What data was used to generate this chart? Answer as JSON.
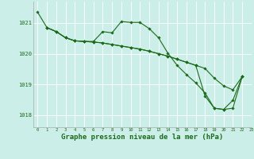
{
  "background_color": "#cceee8",
  "grid_color": "#ffffff",
  "line_color": "#1a6b1a",
  "marker_color": "#1a6b1a",
  "xlabel": "Graphe pression niveau de la mer (hPa)",
  "xlabel_fontsize": 6.5,
  "ylabel_ticks": [
    1018,
    1019,
    1020,
    1021
  ],
  "xlim": [
    -0.5,
    23
  ],
  "ylim": [
    1017.6,
    1021.7
  ],
  "line1_x": [
    0,
    1,
    2,
    3,
    4,
    5,
    6,
    7,
    8,
    9,
    10,
    11,
    12,
    13,
    14,
    15,
    16,
    17,
    18,
    19,
    20,
    21,
    22
  ],
  "line1_y": [
    1021.35,
    1020.85,
    1020.72,
    1020.52,
    1020.42,
    1020.4,
    1020.4,
    1020.72,
    1020.68,
    1021.05,
    1021.02,
    1021.02,
    1020.82,
    1020.52,
    1020.02,
    1019.62,
    1019.32,
    1019.05,
    1018.72,
    1018.22,
    1018.18,
    1018.22,
    1019.25
  ],
  "line2_x": [
    1,
    2,
    3,
    4,
    5,
    6,
    7,
    8,
    9,
    10,
    11,
    12,
    13,
    14,
    15,
    16,
    17,
    18,
    19,
    20,
    21,
    22
  ],
  "line2_y": [
    1020.85,
    1020.72,
    1020.52,
    1020.42,
    1020.4,
    1020.38,
    1020.35,
    1020.3,
    1020.25,
    1020.2,
    1020.15,
    1020.08,
    1020.0,
    1019.92,
    1019.82,
    1019.72,
    1019.62,
    1019.52,
    1019.2,
    1018.95,
    1018.82,
    1019.25
  ],
  "line3_x": [
    1,
    2,
    3,
    4,
    5,
    6,
    7,
    8,
    9,
    10,
    11,
    12,
    13,
    14,
    15,
    16,
    17,
    18,
    19,
    20,
    21,
    22
  ],
  "line3_y": [
    1020.85,
    1020.72,
    1020.52,
    1020.42,
    1020.4,
    1020.38,
    1020.35,
    1020.3,
    1020.25,
    1020.2,
    1020.15,
    1020.08,
    1020.0,
    1019.92,
    1019.82,
    1019.72,
    1019.62,
    1018.62,
    1018.22,
    1018.18,
    1018.48,
    1019.25
  ]
}
